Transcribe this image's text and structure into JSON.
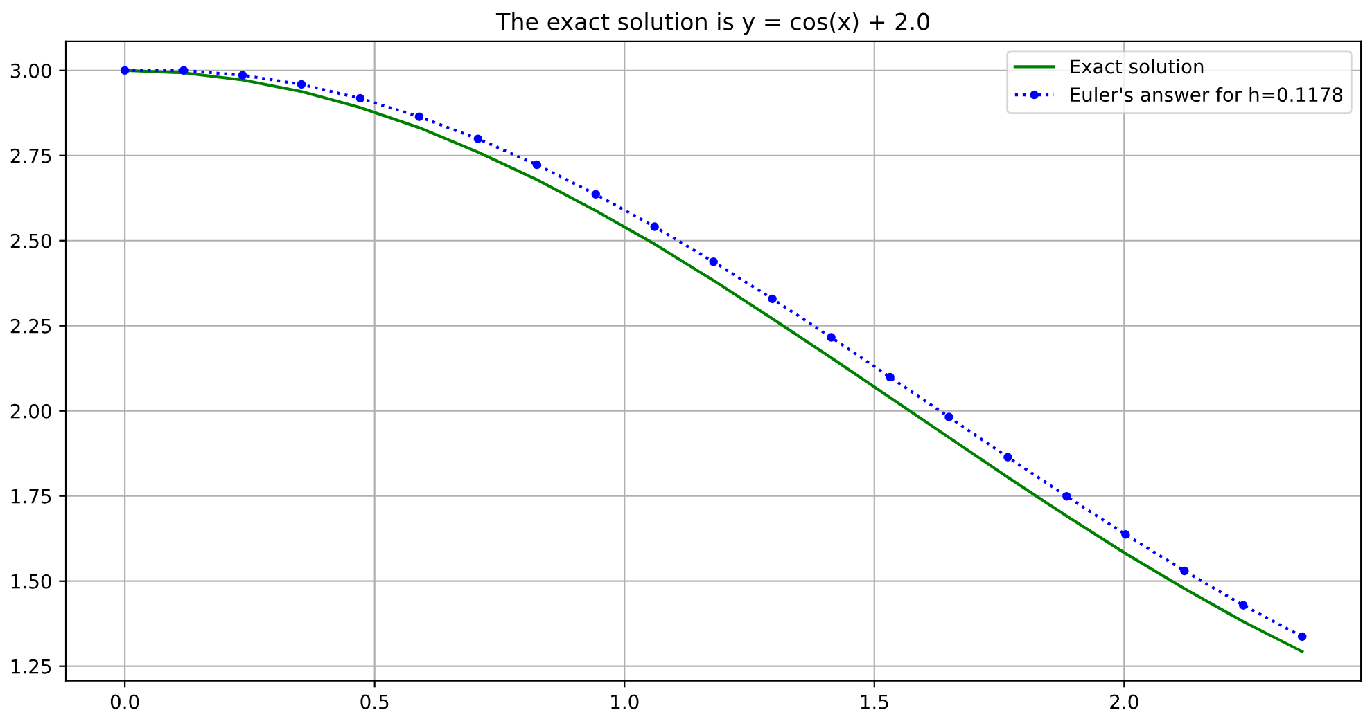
{
  "chart_data": {
    "type": "line",
    "title": "The exact solution is y = cos(x) + 2.0",
    "x": [
      0,
      0.1178,
      0.2356,
      0.3534,
      0.4712,
      0.589,
      0.7068,
      0.8247,
      0.9425,
      1.0603,
      1.1781,
      1.2959,
      1.4137,
      1.5315,
      1.6493,
      1.7671,
      1.885,
      2.0028,
      2.1206,
      2.2384,
      2.3562
    ],
    "series": [
      {
        "name": "Exact solution",
        "color": "#008000",
        "marker": "none",
        "line_style": "solid",
        "values": [
          3.0,
          2.993,
          2.972,
          2.938,
          2.891,
          2.832,
          2.76,
          2.679,
          2.588,
          2.49,
          2.383,
          2.271,
          2.156,
          2.039,
          1.922,
          1.805,
          1.691,
          1.581,
          1.478,
          1.381,
          1.293
        ]
      },
      {
        "name": "Euler's answer for h=0.1178",
        "color": "#0000ff",
        "marker": "circle",
        "line_style": "dotted",
        "values": [
          3.0,
          3.0,
          2.986,
          2.959,
          2.918,
          2.864,
          2.799,
          2.723,
          2.636,
          2.541,
          2.438,
          2.329,
          2.216,
          2.099,
          1.982,
          1.864,
          1.749,
          1.637,
          1.53,
          1.429,
          1.337
        ]
      }
    ],
    "xlim": [
      -0.118,
      2.474
    ],
    "ylim": [
      1.2075,
      3.085
    ],
    "xticks": [
      {
        "value": 0,
        "label": "0.0"
      },
      0.5,
      {
        "value": 1,
        "label": "1.0"
      },
      1.5,
      {
        "value": 2,
        "label": "2.0"
      }
    ],
    "yticks": [
      1.25,
      {
        "value": 1.5,
        "label": "1.50"
      },
      1.75,
      {
        "value": 2,
        "label": "2.00"
      },
      2.25,
      {
        "value": 2.5,
        "label": "2.50"
      },
      2.75,
      {
        "value": 3,
        "label": "3.00"
      }
    ],
    "grid": true,
    "legend": "top right"
  }
}
